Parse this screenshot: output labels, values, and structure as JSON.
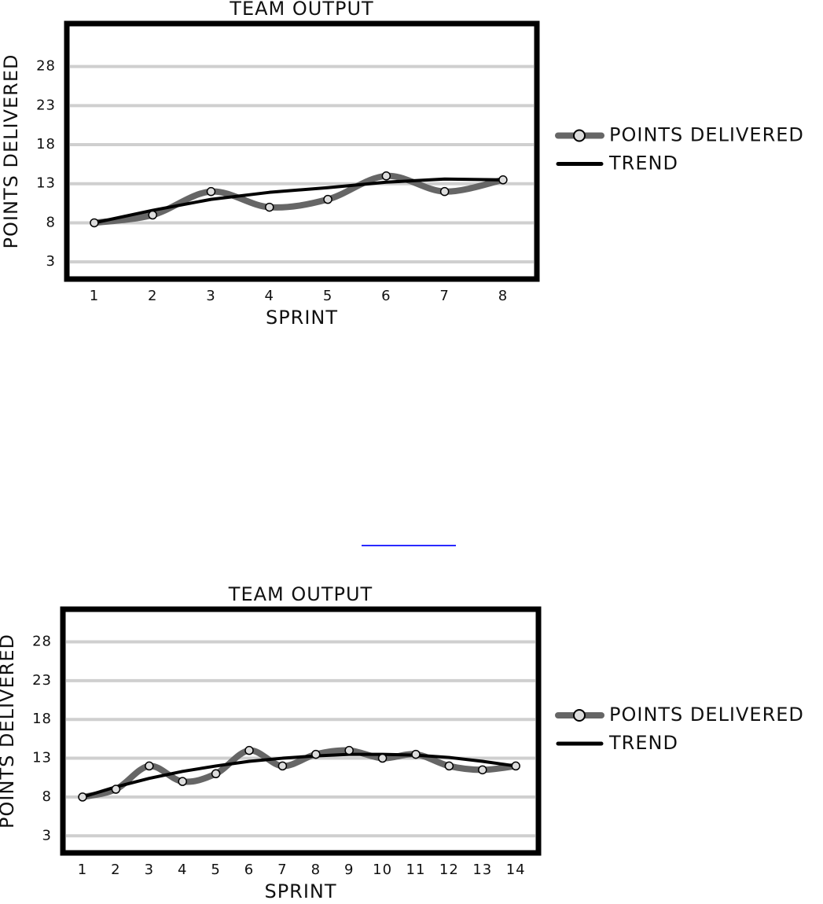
{
  "chart_data": [
    {
      "type": "line",
      "title": "TEAM OUTPUT",
      "x_label": "SPRINT",
      "y_label": "POINTS DELIVERED",
      "x": [
        1,
        2,
        3,
        4,
        5,
        6,
        7,
        8
      ],
      "xlim": [
        0.53,
        8.58
      ],
      "xticks": [
        1,
        2,
        3,
        4,
        5,
        6,
        7,
        8
      ],
      "ylim": [
        0.8,
        33.5
      ],
      "yticks": [
        3,
        8,
        13,
        18,
        23,
        28
      ],
      "grid": true,
      "series": [
        {
          "name": "POINTS DELIVERED",
          "color": "#666666",
          "values": [
            8,
            9,
            12,
            10,
            11,
            14,
            12,
            13.5
          ]
        },
        {
          "name": "TREND",
          "color": "#000000",
          "values": [
            8,
            9.6,
            11,
            11.9,
            12.5,
            13.2,
            13.6,
            13.5
          ]
        }
      ]
    },
    {
      "type": "line",
      "title": "TEAM OUTPUT",
      "x_label": "SPRINT",
      "y_label": "POINTS DELIVERED",
      "x": [
        1,
        2,
        3,
        4,
        5,
        6,
        7,
        8,
        9,
        10,
        11,
        12,
        13,
        14
      ],
      "xlim": [
        0.41,
        14.68
      ],
      "xticks": [
        1,
        2,
        3,
        4,
        5,
        6,
        7,
        8,
        9,
        10,
        11,
        12,
        13,
        14
      ],
      "ylim": [
        0.8,
        32.2
      ],
      "yticks": [
        3,
        8,
        13,
        18,
        23,
        28
      ],
      "grid": true,
      "series": [
        {
          "name": "POINTS DELIVERED",
          "color": "#666666",
          "values": [
            8,
            9,
            12,
            10,
            11,
            14,
            12,
            13.5,
            14,
            13,
            13.5,
            12,
            11.5,
            12
          ]
        },
        {
          "name": "TREND",
          "color": "#000000",
          "values": [
            8,
            9.3,
            10.4,
            11.3,
            12,
            12.6,
            13,
            13.3,
            13.5,
            13.5,
            13.4,
            13.1,
            12.6,
            12
          ]
        }
      ]
    }
  ]
}
